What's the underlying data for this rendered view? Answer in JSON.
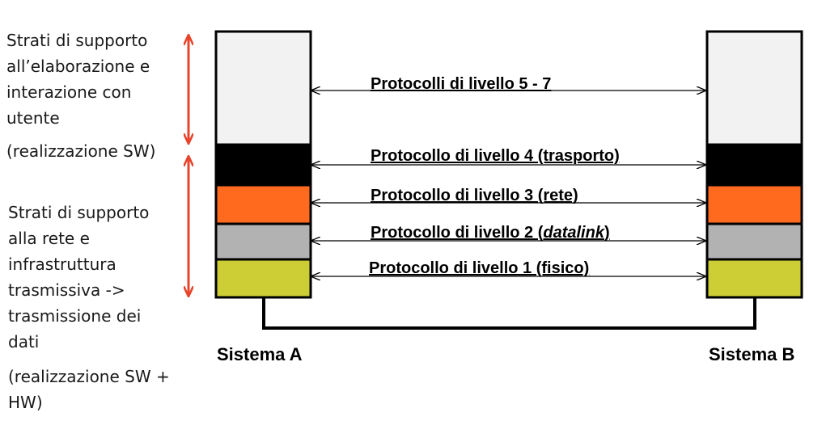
{
  "left_notes": {
    "upper_description": "Strati di supporto all’elaborazione e interazione con utente",
    "upper_note": "(realizzazione SW)",
    "lower_description": "Strati di supporto alla rete e infrastruttura trasmissiva -> trasmissione dei dati",
    "lower_note": "(realizzazione SW + HW)"
  },
  "protocols": {
    "layer_5_7": "Protocolli di livello 5 - 7",
    "layer_4": "Protocollo di livello 4 (trasporto)",
    "layer_3": "Protocollo di livello 3 (rete)",
    "layer_2_prefix": "Protocollo di livello 2 (",
    "layer_2_term": "datalink",
    "layer_2_suffix": ")",
    "layer_1": "Protocollo di livello 1 (fisico)"
  },
  "systems": {
    "a": "Sistema A",
    "b": "Sistema B"
  },
  "colors": {
    "layer_5_7": "#f2f2f2",
    "layer_4": "#000000",
    "layer_3": "#ff6a1e",
    "layer_2": "#b2b2b2",
    "layer_1": "#cdcd35",
    "bracket_arrows": "#e8452c"
  }
}
